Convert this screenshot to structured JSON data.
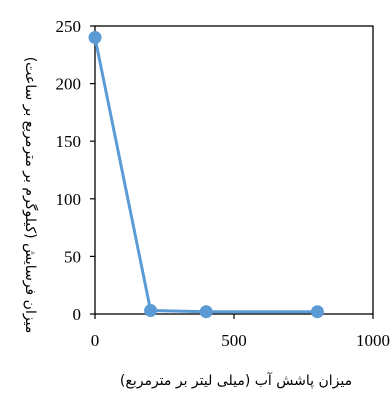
{
  "chart_data": {
    "type": "line",
    "title": "",
    "xlabel": "میزان پاشش آب (میلی لیتر بر مترمربع)",
    "ylabel": "میزان فرسایش (کیلوگرم بر مترمربع بر ساعت)",
    "xlim": [
      0,
      1000
    ],
    "ylim": [
      0,
      250
    ],
    "x_ticks": [
      "0",
      "500",
      "1000"
    ],
    "y_ticks": [
      "0",
      "50",
      "100",
      "150",
      "200",
      "250"
    ],
    "grid": false,
    "legend": "none",
    "series": [
      {
        "x": [
          0,
          200,
          400,
          800
        ],
        "y": [
          240,
          3,
          2,
          2
        ],
        "color": "#5b9bd5"
      }
    ]
  }
}
